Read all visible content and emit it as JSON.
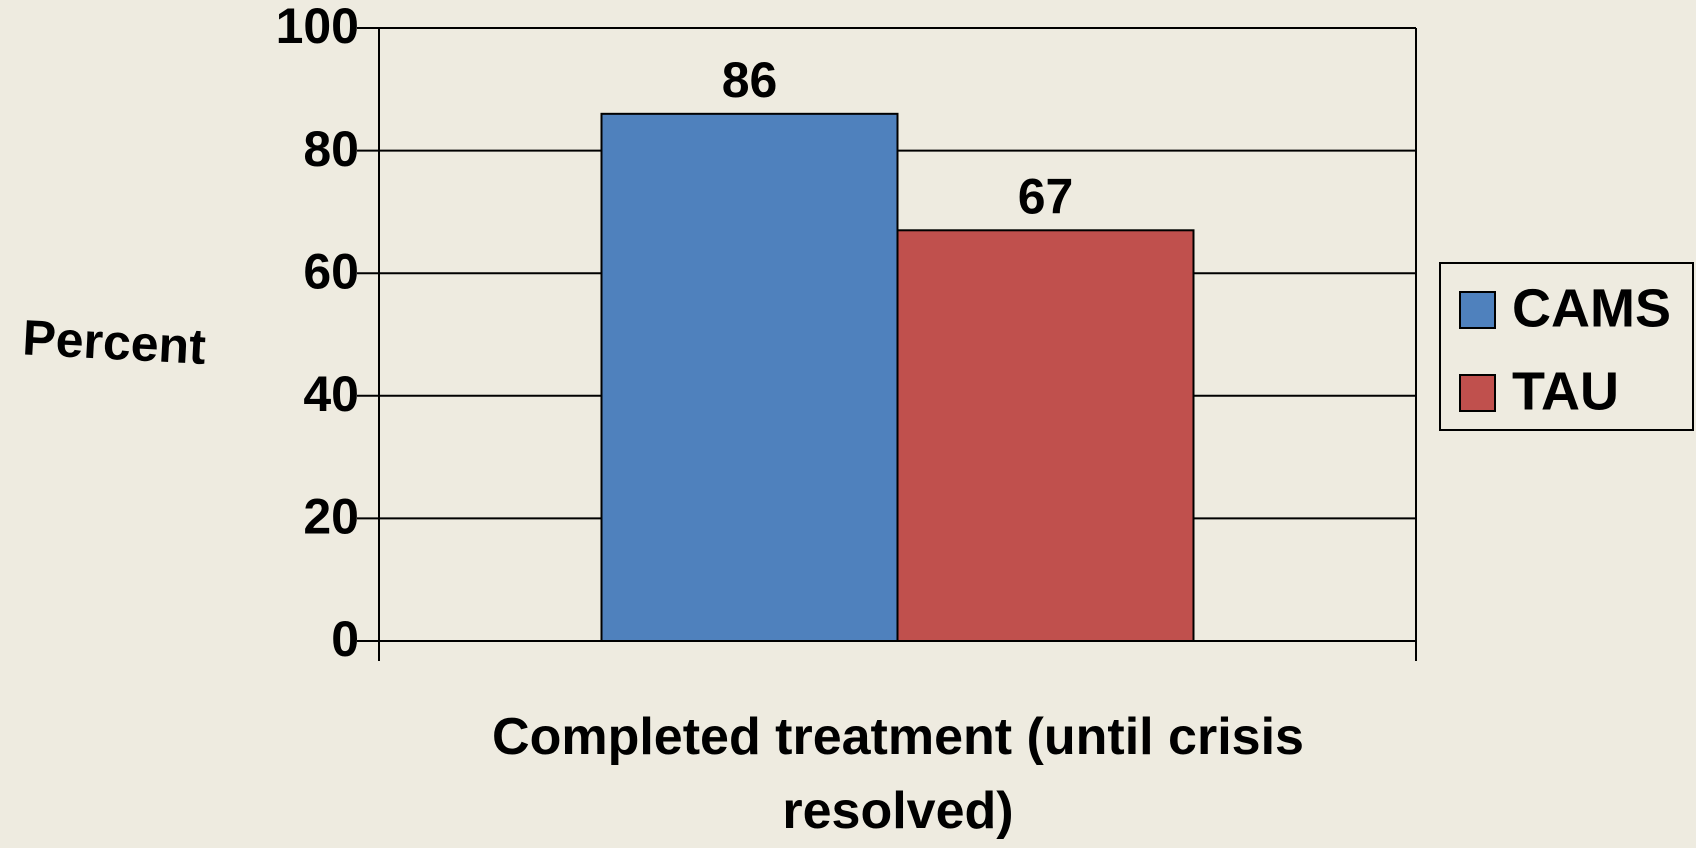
{
  "chart_data": {
    "type": "bar",
    "y_label": "Percent",
    "categories": [
      "Completed treatment (until crisis resolved)"
    ],
    "series": [
      {
        "name": "CAMS",
        "color": "#4f81bd",
        "values": [
          86
        ]
      },
      {
        "name": "TAU",
        "color": "#c0504d",
        "values": [
          67
        ]
      }
    ],
    "ylim": [
      0,
      100
    ],
    "yticks": [
      0,
      20,
      40,
      60,
      80,
      100
    ],
    "grid": true,
    "legend": "right"
  }
}
